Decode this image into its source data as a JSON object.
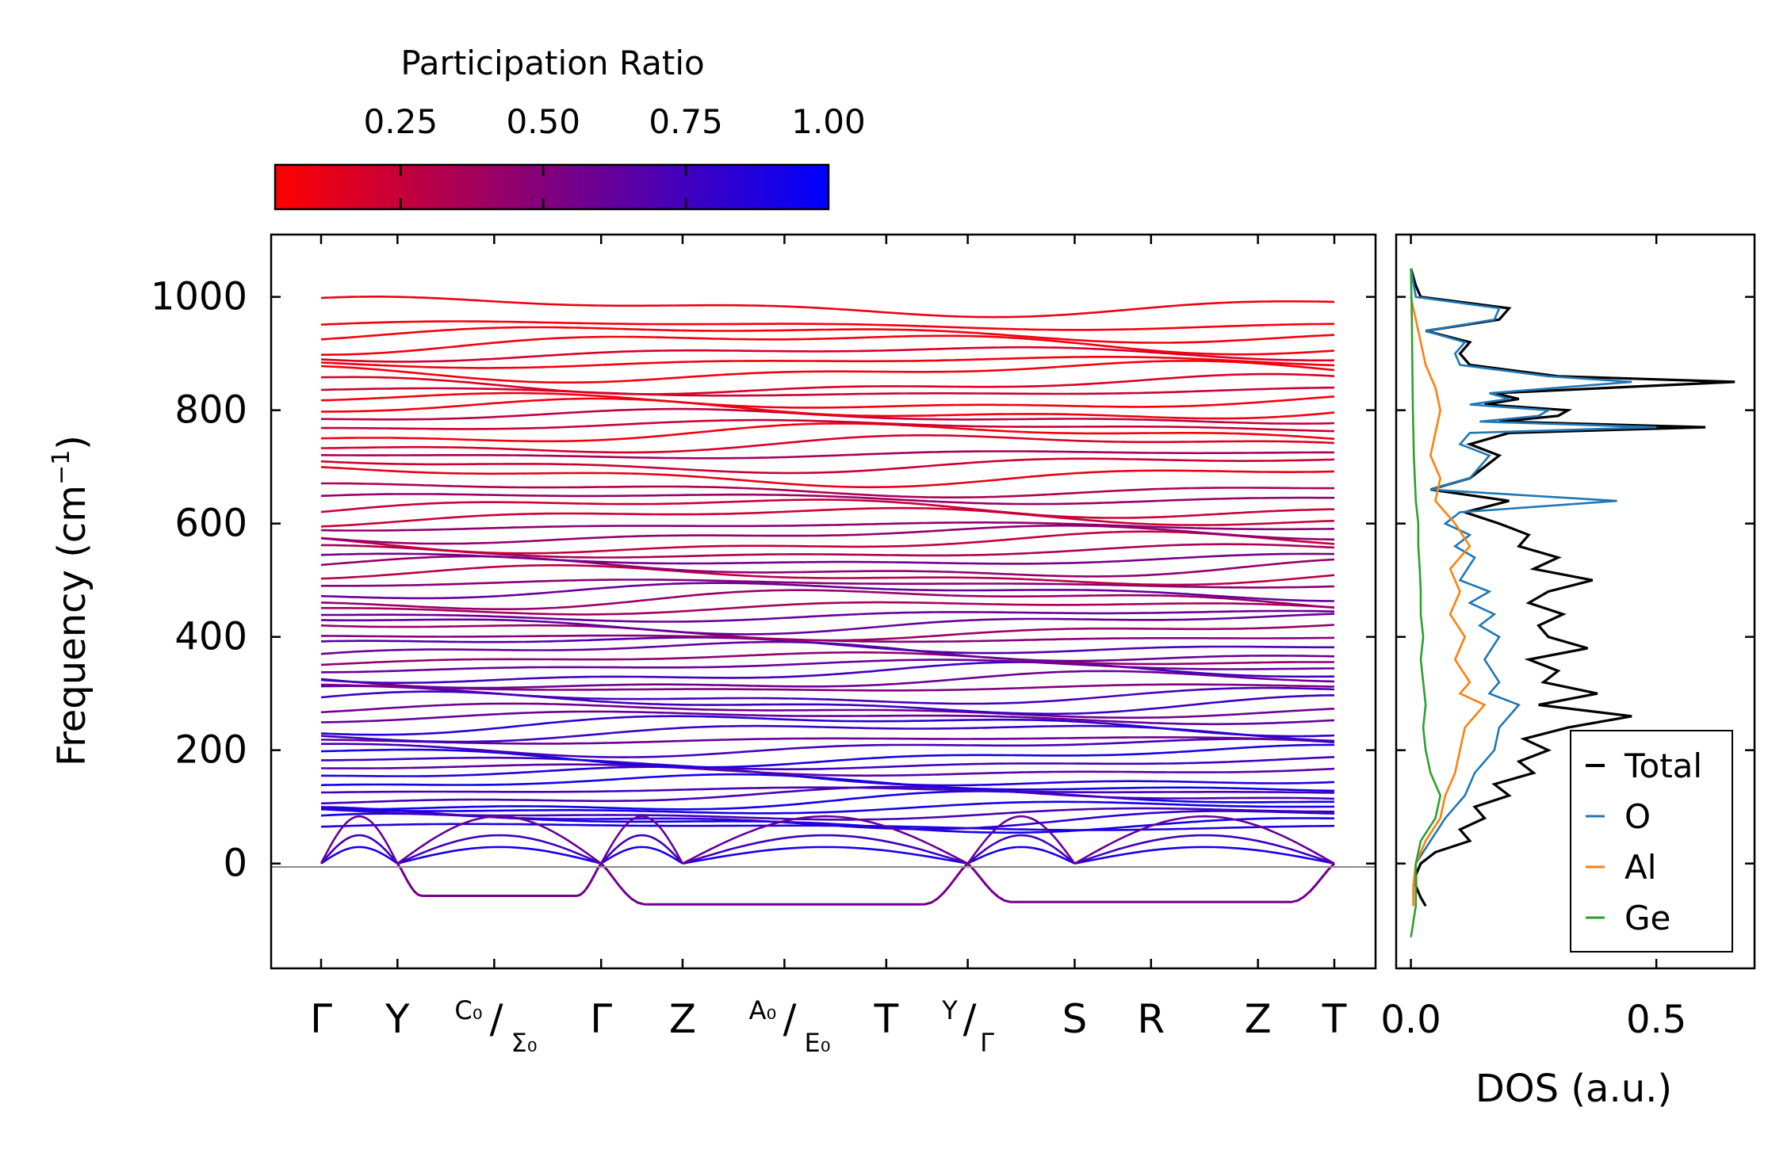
{
  "chart_data": [
    {
      "type": "line",
      "name": "phonon-dispersion",
      "ylabel": "Frequency (cm",
      "ylabel_sup": "−1",
      "ylabel_close": ")",
      "ylim": [
        -185,
        1110
      ],
      "yticks": [
        0,
        200,
        400,
        600,
        800,
        1000
      ],
      "ytick_labels": [
        "0",
        "200",
        "400",
        "600",
        "800",
        "1000"
      ],
      "kpoints": [
        {
          "pos": 0.0,
          "label": "Γ"
        },
        {
          "pos": 0.15,
          "label": "Y"
        },
        {
          "pos": 0.34,
          "label": "C₀/Σ₀"
        },
        {
          "pos": 0.55,
          "label": "Γ"
        },
        {
          "pos": 0.71,
          "label": "Z"
        },
        {
          "pos": 0.91,
          "label": "A₀/E₀"
        },
        {
          "pos": 1.11,
          "label": "T"
        },
        {
          "pos": 1.27,
          "label": "Y/Γ"
        },
        {
          "pos": 1.48,
          "label": "S"
        },
        {
          "pos": 1.63,
          "label": "R"
        },
        {
          "pos": 1.84,
          "label": "Z"
        },
        {
          "pos": 1.99,
          "label": "T"
        }
      ],
      "label_parts": {
        "c0": "C₀",
        "sigma0": "Σ₀",
        "a0": "A₀",
        "e0": "E₀",
        "y": "Y",
        "gamma": "Γ",
        "slash": "/"
      },
      "imaginary_branches": [
        {
          "from": 0.15,
          "to": 0.55,
          "min": -57
        },
        {
          "from": 0.55,
          "to": 1.27,
          "min": -72
        },
        {
          "from": 1.27,
          "to": 1.99,
          "min": -68
        }
      ],
      "acoustic_max": 98,
      "optical_modes": [
        65,
        72,
        80,
        88,
        98,
        108,
        118,
        128,
        140,
        152,
        165,
        178,
        190,
        205,
        218,
        232,
        245,
        258,
        270,
        283,
        296,
        310,
        322,
        335,
        348,
        360,
        373,
        386,
        398,
        412,
        425,
        438,
        452,
        466,
        480,
        494,
        508,
        522,
        536,
        550,
        565,
        580,
        595,
        612,
        628,
        645,
        660,
        685,
        705,
        722,
        740,
        758,
        772,
        788,
        800,
        815,
        832,
        845,
        868,
        885,
        900,
        918,
        935,
        950,
        983
      ]
    },
    {
      "type": "line",
      "name": "density-of-states",
      "xlabel": "DOS (a.u.)",
      "xlim": [
        -0.03,
        0.7
      ],
      "ylim": [
        -185,
        1110
      ],
      "xticks": [
        0.0,
        0.5
      ],
      "xtick_labels": [
        "0.0",
        "0.5"
      ],
      "series": [
        {
          "name": "Total",
          "color": "#000000",
          "y": [
            -75,
            -60,
            -40,
            -20,
            0,
            20,
            40,
            60,
            80,
            100,
            120,
            140,
            160,
            180,
            200,
            220,
            240,
            260,
            280,
            300,
            320,
            340,
            360,
            380,
            400,
            420,
            440,
            460,
            480,
            500,
            520,
            540,
            560,
            580,
            600,
            620,
            640,
            660,
            680,
            700,
            720,
            740,
            760,
            770,
            780,
            790,
            800,
            810,
            820,
            830,
            850,
            860,
            880,
            900,
            920,
            940,
            960,
            980,
            1000,
            1020,
            1050
          ],
          "x": [
            0.03,
            0.02,
            0.01,
            0.01,
            0.02,
            0.05,
            0.12,
            0.1,
            0.15,
            0.13,
            0.2,
            0.17,
            0.25,
            0.22,
            0.28,
            0.23,
            0.32,
            0.45,
            0.26,
            0.38,
            0.27,
            0.3,
            0.24,
            0.36,
            0.28,
            0.26,
            0.31,
            0.24,
            0.28,
            0.37,
            0.25,
            0.3,
            0.22,
            0.24,
            0.18,
            0.11,
            0.2,
            0.04,
            0.12,
            0.15,
            0.18,
            0.12,
            0.2,
            0.6,
            0.18,
            0.3,
            0.32,
            0.15,
            0.22,
            0.17,
            0.66,
            0.3,
            0.12,
            0.1,
            0.12,
            0.03,
            0.18,
            0.2,
            0.02,
            0.01,
            0.0
          ]
        },
        {
          "name": "O",
          "color": "#1f77b4",
          "y": [
            -75,
            -40,
            0,
            40,
            80,
            100,
            120,
            160,
            200,
            240,
            280,
            300,
            320,
            360,
            400,
            420,
            440,
            460,
            480,
            500,
            540,
            560,
            580,
            600,
            620,
            640,
            660,
            680,
            700,
            720,
            740,
            760,
            770,
            780,
            790,
            800,
            810,
            820,
            830,
            850,
            860,
            880,
            900,
            920,
            940,
            960,
            980,
            1000,
            1050
          ],
          "x": [
            0.005,
            0.005,
            0.01,
            0.04,
            0.07,
            0.09,
            0.11,
            0.13,
            0.17,
            0.18,
            0.22,
            0.16,
            0.18,
            0.15,
            0.18,
            0.14,
            0.17,
            0.12,
            0.16,
            0.1,
            0.13,
            0.09,
            0.12,
            0.07,
            0.1,
            0.42,
            0.04,
            0.12,
            0.14,
            0.16,
            0.1,
            0.12,
            0.5,
            0.14,
            0.26,
            0.28,
            0.12,
            0.2,
            0.16,
            0.45,
            0.28,
            0.1,
            0.09,
            0.11,
            0.03,
            0.17,
            0.18,
            0.01,
            0.0
          ]
        },
        {
          "name": "Al",
          "color": "#ff7f0e",
          "y": [
            -75,
            -40,
            0,
            40,
            80,
            120,
            160,
            200,
            240,
            280,
            300,
            320,
            360,
            400,
            440,
            480,
            520,
            560,
            600,
            640,
            680,
            720,
            760,
            800,
            840,
            880,
            920,
            960,
            1000
          ],
          "x": [
            0.005,
            0.005,
            0.01,
            0.03,
            0.06,
            0.07,
            0.09,
            0.1,
            0.11,
            0.15,
            0.1,
            0.12,
            0.09,
            0.11,
            0.08,
            0.1,
            0.08,
            0.12,
            0.09,
            0.05,
            0.06,
            0.04,
            0.05,
            0.06,
            0.05,
            0.03,
            0.02,
            0.01,
            0.0
          ]
        },
        {
          "name": "Ge",
          "color": "#2ca02c",
          "y": [
            -130,
            -75,
            -40,
            0,
            40,
            80,
            120,
            160,
            200,
            240,
            280,
            320,
            360,
            400,
            440,
            480,
            520,
            560,
            600,
            640,
            680,
            720,
            760,
            800,
            880,
            960,
            1050
          ],
          "x": [
            0.0,
            0.01,
            0.01,
            0.01,
            0.02,
            0.05,
            0.06,
            0.04,
            0.03,
            0.025,
            0.03,
            0.025,
            0.02,
            0.025,
            0.02,
            0.02,
            0.018,
            0.015,
            0.015,
            0.01,
            0.008,
            0.006,
            0.005,
            0.004,
            0.003,
            0.002,
            0.0
          ]
        }
      ],
      "legend_loc": "lower-right"
    }
  ],
  "colorbar": {
    "label": "Participation Ratio",
    "ticks": [
      0.25,
      0.5,
      0.75,
      1.0
    ],
    "tick_labels": [
      "0.25",
      "0.50",
      "0.75",
      "1.00"
    ],
    "range": [
      0.03,
      1.0
    ],
    "color_low": "#ff0000",
    "color_high": "#0000ff"
  }
}
